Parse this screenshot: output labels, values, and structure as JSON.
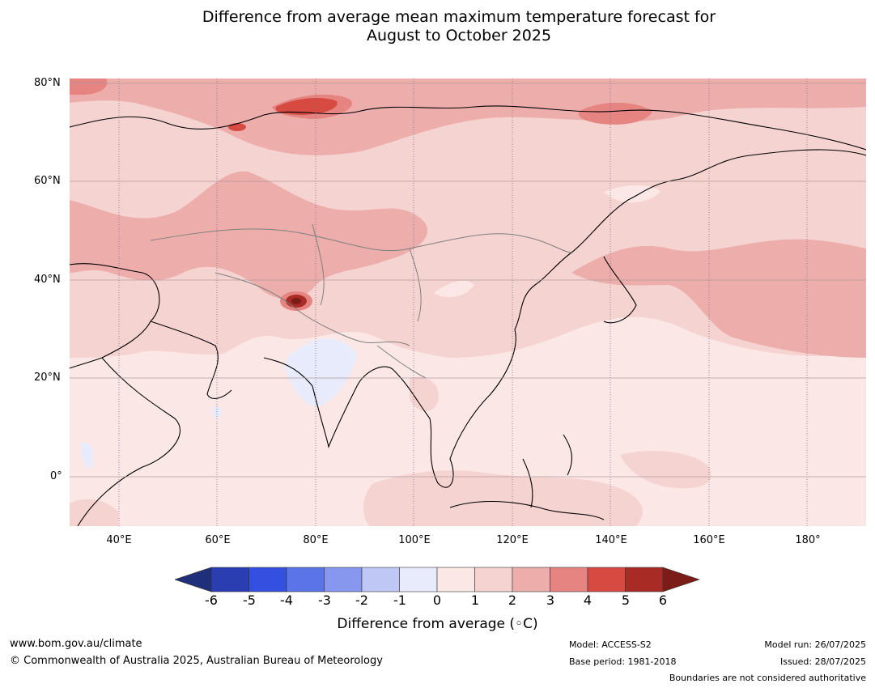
{
  "title_line1": "Difference from average mean maximum temperature forecast for",
  "title_line2": "August to October 2025",
  "map": {
    "lon_range": [
      30,
      192
    ],
    "lat_range": [
      -10,
      81
    ],
    "lat_labels": [
      "80°N",
      "60°N",
      "40°N",
      "20°N",
      "0°"
    ],
    "lon_labels": [
      "40°E",
      "60°E",
      "80°E",
      "100°E",
      "120°E",
      "140°E",
      "160°E",
      "180°"
    ]
  },
  "colorbar": {
    "ticks": [
      "-6",
      "-5",
      "-4",
      "-3",
      "-2",
      "-1",
      "0",
      "1",
      "2",
      "3",
      "4",
      "5",
      "6"
    ],
    "label": "Difference from average (◦C)",
    "colors": [
      "#1f2f7a",
      "#2a3eb1",
      "#3350e0",
      "#5b74e8",
      "#8897ee",
      "#bfc7f5",
      "#e8ebfb",
      "#fbe8e6",
      "#f5d3d1",
      "#edaeab",
      "#e58480",
      "#d64a42",
      "#a92b26",
      "#7b1c18"
    ]
  },
  "footer": {
    "url": "www.bom.gov.au/climate",
    "copyright": "© Commonwealth of Australia 2025, Australian Bureau of Meteorology",
    "model": "Model: ACCESS-S2",
    "base_period": "Base period: 1981-2018",
    "model_run": "Model run: 26/07/2025",
    "issued": "Issued: 28/07/2025",
    "disclaimer": "Boundaries are not considered authoritative"
  }
}
